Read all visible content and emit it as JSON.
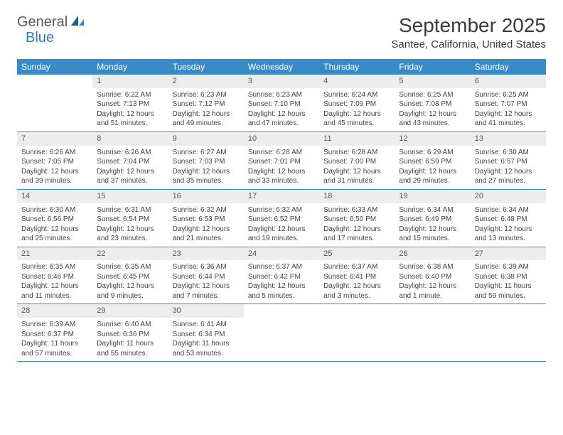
{
  "brand": {
    "general": "General",
    "blue": "Blue"
  },
  "title": "September 2025",
  "location": "Santee, California, United States",
  "colors": {
    "header_bg": "#3a8ac8",
    "header_text": "#ffffff",
    "daynum_bg": "#eceeee",
    "border": "#3a8ac8",
    "body_text": "#444444",
    "logo_gray": "#5a5a5a",
    "logo_blue": "#2f7bbf"
  },
  "weekdays": [
    "Sunday",
    "Monday",
    "Tuesday",
    "Wednesday",
    "Thursday",
    "Friday",
    "Saturday"
  ],
  "weeks": [
    [
      {
        "n": "",
        "sunrise": "",
        "sunset": "",
        "daylight": ""
      },
      {
        "n": "1",
        "sunrise": "Sunrise: 6:22 AM",
        "sunset": "Sunset: 7:13 PM",
        "daylight": "Daylight: 12 hours and 51 minutes."
      },
      {
        "n": "2",
        "sunrise": "Sunrise: 6:23 AM",
        "sunset": "Sunset: 7:12 PM",
        "daylight": "Daylight: 12 hours and 49 minutes."
      },
      {
        "n": "3",
        "sunrise": "Sunrise: 6:23 AM",
        "sunset": "Sunset: 7:10 PM",
        "daylight": "Daylight: 12 hours and 47 minutes."
      },
      {
        "n": "4",
        "sunrise": "Sunrise: 6:24 AM",
        "sunset": "Sunset: 7:09 PM",
        "daylight": "Daylight: 12 hours and 45 minutes."
      },
      {
        "n": "5",
        "sunrise": "Sunrise: 6:25 AM",
        "sunset": "Sunset: 7:08 PM",
        "daylight": "Daylight: 12 hours and 43 minutes."
      },
      {
        "n": "6",
        "sunrise": "Sunrise: 6:25 AM",
        "sunset": "Sunset: 7:07 PM",
        "daylight": "Daylight: 12 hours and 41 minutes."
      }
    ],
    [
      {
        "n": "7",
        "sunrise": "Sunrise: 6:26 AM",
        "sunset": "Sunset: 7:05 PM",
        "daylight": "Daylight: 12 hours and 39 minutes."
      },
      {
        "n": "8",
        "sunrise": "Sunrise: 6:26 AM",
        "sunset": "Sunset: 7:04 PM",
        "daylight": "Daylight: 12 hours and 37 minutes."
      },
      {
        "n": "9",
        "sunrise": "Sunrise: 6:27 AM",
        "sunset": "Sunset: 7:03 PM",
        "daylight": "Daylight: 12 hours and 35 minutes."
      },
      {
        "n": "10",
        "sunrise": "Sunrise: 6:28 AM",
        "sunset": "Sunset: 7:01 PM",
        "daylight": "Daylight: 12 hours and 33 minutes."
      },
      {
        "n": "11",
        "sunrise": "Sunrise: 6:28 AM",
        "sunset": "Sunset: 7:00 PM",
        "daylight": "Daylight: 12 hours and 31 minutes."
      },
      {
        "n": "12",
        "sunrise": "Sunrise: 6:29 AM",
        "sunset": "Sunset: 6:59 PM",
        "daylight": "Daylight: 12 hours and 29 minutes."
      },
      {
        "n": "13",
        "sunrise": "Sunrise: 6:30 AM",
        "sunset": "Sunset: 6:57 PM",
        "daylight": "Daylight: 12 hours and 27 minutes."
      }
    ],
    [
      {
        "n": "14",
        "sunrise": "Sunrise: 6:30 AM",
        "sunset": "Sunset: 6:56 PM",
        "daylight": "Daylight: 12 hours and 25 minutes."
      },
      {
        "n": "15",
        "sunrise": "Sunrise: 6:31 AM",
        "sunset": "Sunset: 6:54 PM",
        "daylight": "Daylight: 12 hours and 23 minutes."
      },
      {
        "n": "16",
        "sunrise": "Sunrise: 6:32 AM",
        "sunset": "Sunset: 6:53 PM",
        "daylight": "Daylight: 12 hours and 21 minutes."
      },
      {
        "n": "17",
        "sunrise": "Sunrise: 6:32 AM",
        "sunset": "Sunset: 6:52 PM",
        "daylight": "Daylight: 12 hours and 19 minutes."
      },
      {
        "n": "18",
        "sunrise": "Sunrise: 6:33 AM",
        "sunset": "Sunset: 6:50 PM",
        "daylight": "Daylight: 12 hours and 17 minutes."
      },
      {
        "n": "19",
        "sunrise": "Sunrise: 6:34 AM",
        "sunset": "Sunset: 6:49 PM",
        "daylight": "Daylight: 12 hours and 15 minutes."
      },
      {
        "n": "20",
        "sunrise": "Sunrise: 6:34 AM",
        "sunset": "Sunset: 6:48 PM",
        "daylight": "Daylight: 12 hours and 13 minutes."
      }
    ],
    [
      {
        "n": "21",
        "sunrise": "Sunrise: 6:35 AM",
        "sunset": "Sunset: 6:46 PM",
        "daylight": "Daylight: 12 hours and 11 minutes."
      },
      {
        "n": "22",
        "sunrise": "Sunrise: 6:35 AM",
        "sunset": "Sunset: 6:45 PM",
        "daylight": "Daylight: 12 hours and 9 minutes."
      },
      {
        "n": "23",
        "sunrise": "Sunrise: 6:36 AM",
        "sunset": "Sunset: 6:44 PM",
        "daylight": "Daylight: 12 hours and 7 minutes."
      },
      {
        "n": "24",
        "sunrise": "Sunrise: 6:37 AM",
        "sunset": "Sunset: 6:42 PM",
        "daylight": "Daylight: 12 hours and 5 minutes."
      },
      {
        "n": "25",
        "sunrise": "Sunrise: 6:37 AM",
        "sunset": "Sunset: 6:41 PM",
        "daylight": "Daylight: 12 hours and 3 minutes."
      },
      {
        "n": "26",
        "sunrise": "Sunrise: 6:38 AM",
        "sunset": "Sunset: 6:40 PM",
        "daylight": "Daylight: 12 hours and 1 minute."
      },
      {
        "n": "27",
        "sunrise": "Sunrise: 6:39 AM",
        "sunset": "Sunset: 6:38 PM",
        "daylight": "Daylight: 11 hours and 59 minutes."
      }
    ],
    [
      {
        "n": "28",
        "sunrise": "Sunrise: 6:39 AM",
        "sunset": "Sunset: 6:37 PM",
        "daylight": "Daylight: 11 hours and 57 minutes."
      },
      {
        "n": "29",
        "sunrise": "Sunrise: 6:40 AM",
        "sunset": "Sunset: 6:36 PM",
        "daylight": "Daylight: 11 hours and 55 minutes."
      },
      {
        "n": "30",
        "sunrise": "Sunrise: 6:41 AM",
        "sunset": "Sunset: 6:34 PM",
        "daylight": "Daylight: 11 hours and 53 minutes."
      },
      {
        "n": "",
        "sunrise": "",
        "sunset": "",
        "daylight": ""
      },
      {
        "n": "",
        "sunrise": "",
        "sunset": "",
        "daylight": ""
      },
      {
        "n": "",
        "sunrise": "",
        "sunset": "",
        "daylight": ""
      },
      {
        "n": "",
        "sunrise": "",
        "sunset": "",
        "daylight": ""
      }
    ]
  ]
}
